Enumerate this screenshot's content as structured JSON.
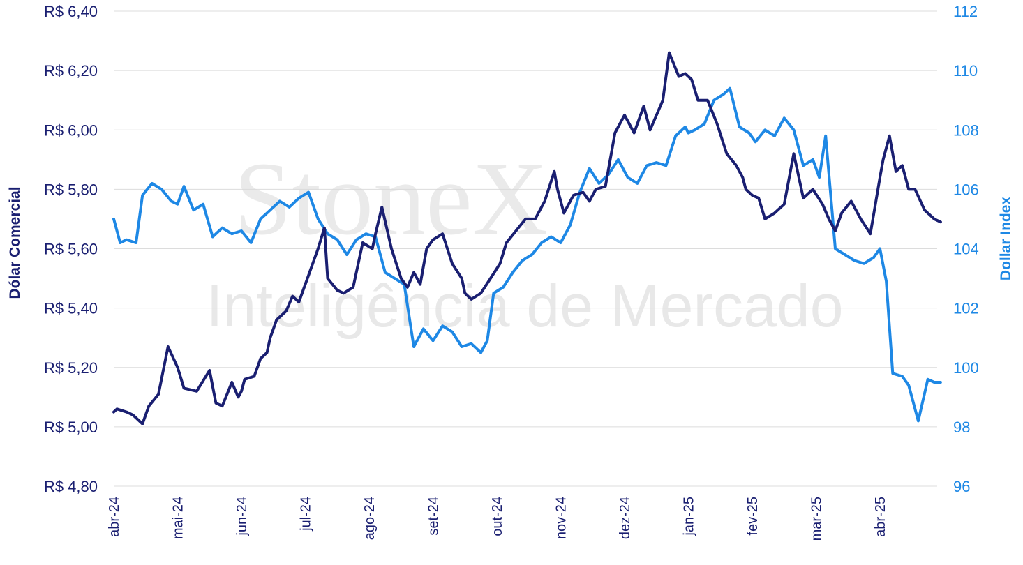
{
  "watermark": {
    "brand": "StoneX",
    "subtitle": "Inteligência de Mercado"
  },
  "chart_data": {
    "type": "line",
    "y_left": {
      "label": "Dólar Comercial",
      "range": [
        4.8,
        6.4
      ],
      "ticks": [
        "R$ 6,40",
        "R$ 6,20",
        "R$ 6,00",
        "R$ 5,80",
        "R$ 5,60",
        "R$ 5,40",
        "R$ 5,20",
        "R$ 5,00",
        "R$ 4,80"
      ]
    },
    "y_right": {
      "label": "Dollar Index",
      "range": [
        96,
        112
      ],
      "ticks": [
        "112",
        "110",
        "108",
        "106",
        "104",
        "102",
        "100",
        "98",
        "96"
      ]
    },
    "x_ticks": [
      "abr-24",
      "mai-24",
      "jun-24",
      "jul-24",
      "ago-24",
      "set-24",
      "out-24",
      "nov-24",
      "dez-24",
      "jan-25",
      "fev-25",
      "mar-25",
      "abr-25"
    ],
    "grid": "horizontal",
    "legend": "none",
    "colors": {
      "brl": "#1a1f71",
      "dxy": "#1e88e5"
    },
    "series": [
      {
        "name": "Dólar Comercial",
        "axis": "left",
        "x": [
          0,
          0.05,
          0.2,
          0.3,
          0.45,
          0.55,
          0.7,
          0.85,
          1.0,
          1.1,
          1.3,
          1.5,
          1.6,
          1.7,
          1.85,
          1.95,
          2.0,
          2.05,
          2.2,
          2.3,
          2.4,
          2.45,
          2.5,
          2.55,
          2.7,
          2.8,
          2.9,
          3.05,
          3.2,
          3.3,
          3.35,
          3.5,
          3.6,
          3.75,
          3.9,
          4.05,
          4.1,
          4.2,
          4.35,
          4.5,
          4.6,
          4.7,
          4.8,
          4.9,
          5.0,
          5.15,
          5.3,
          5.45,
          5.5,
          5.6,
          5.75,
          5.9,
          6.05,
          6.15,
          6.3,
          6.45,
          6.5,
          6.6,
          6.75,
          6.9,
          6.95,
          7.05,
          7.2,
          7.35,
          7.45,
          7.55,
          7.7,
          7.85,
          8.0,
          8.15,
          8.3,
          8.4,
          8.5,
          8.6,
          8.7,
          8.85,
          8.95,
          9.0,
          9.05,
          9.15,
          9.3,
          9.45,
          9.6,
          9.75,
          9.85,
          9.9,
          10.0,
          10.1,
          10.2,
          10.35,
          10.5,
          10.65,
          10.8,
          10.95,
          11.1,
          11.2,
          11.3,
          11.4,
          11.55,
          11.7,
          11.85,
          12.0,
          12.05,
          12.15,
          12.25,
          12.35,
          12.45,
          12.55,
          12.7,
          12.85,
          12.95
        ],
        "values": [
          5.05,
          5.06,
          5.05,
          5.04,
          5.01,
          5.07,
          5.11,
          5.27,
          5.2,
          5.13,
          5.12,
          5.19,
          5.08,
          5.07,
          5.15,
          5.1,
          5.12,
          5.16,
          5.17,
          5.23,
          5.25,
          5.3,
          5.33,
          5.36,
          5.39,
          5.44,
          5.42,
          5.51,
          5.6,
          5.67,
          5.5,
          5.46,
          5.45,
          5.47,
          5.62,
          5.6,
          5.65,
          5.74,
          5.6,
          5.5,
          5.47,
          5.52,
          5.48,
          5.6,
          5.63,
          5.65,
          5.55,
          5.5,
          5.45,
          5.43,
          5.45,
          5.5,
          5.55,
          5.62,
          5.66,
          5.7,
          5.7,
          5.7,
          5.76,
          5.86,
          5.8,
          5.72,
          5.78,
          5.79,
          5.76,
          5.8,
          5.81,
          5.99,
          6.05,
          5.99,
          6.08,
          6.0,
          6.05,
          6.1,
          6.26,
          6.18,
          6.19,
          6.18,
          6.17,
          6.1,
          6.1,
          6.02,
          5.92,
          5.88,
          5.84,
          5.8,
          5.78,
          5.77,
          5.7,
          5.72,
          5.75,
          5.92,
          5.77,
          5.8,
          5.75,
          5.7,
          5.66,
          5.72,
          5.76,
          5.7,
          5.65,
          5.84,
          5.9,
          5.98,
          5.86,
          5.88,
          5.8,
          5.8,
          5.73,
          5.7,
          5.69
        ]
      },
      {
        "name": "Dollar Index",
        "axis": "right",
        "x": [
          0,
          0.1,
          0.2,
          0.35,
          0.45,
          0.6,
          0.75,
          0.9,
          1.0,
          1.1,
          1.25,
          1.4,
          1.55,
          1.7,
          1.85,
          2.0,
          2.15,
          2.3,
          2.45,
          2.6,
          2.75,
          2.9,
          3.05,
          3.2,
          3.35,
          3.5,
          3.65,
          3.8,
          3.95,
          4.1,
          4.25,
          4.4,
          4.55,
          4.7,
          4.85,
          5.0,
          5.15,
          5.3,
          5.45,
          5.6,
          5.75,
          5.85,
          5.95,
          6.1,
          6.25,
          6.4,
          6.55,
          6.7,
          6.85,
          7.0,
          7.15,
          7.3,
          7.45,
          7.6,
          7.75,
          7.9,
          8.05,
          8.2,
          8.35,
          8.5,
          8.65,
          8.8,
          8.95,
          9.0,
          9.1,
          9.25,
          9.4,
          9.55,
          9.65,
          9.8,
          9.95,
          10.05,
          10.2,
          10.35,
          10.5,
          10.65,
          10.8,
          10.95,
          11.05,
          11.15,
          11.3,
          11.45,
          11.6,
          11.75,
          11.9,
          12.0,
          12.1,
          12.2,
          12.35,
          12.45,
          12.6,
          12.75,
          12.85,
          12.95
        ],
        "values": [
          105.0,
          104.2,
          104.3,
          104.2,
          105.8,
          106.2,
          106.0,
          105.6,
          105.5,
          106.1,
          105.3,
          105.5,
          104.4,
          104.7,
          104.5,
          104.6,
          104.2,
          105.0,
          105.3,
          105.6,
          105.4,
          105.7,
          105.9,
          105.0,
          104.5,
          104.3,
          103.8,
          104.3,
          104.5,
          104.4,
          103.2,
          103.0,
          102.8,
          100.7,
          101.3,
          100.9,
          101.4,
          101.2,
          100.7,
          100.8,
          100.5,
          100.9,
          102.5,
          102.7,
          103.2,
          103.6,
          103.8,
          104.2,
          104.4,
          104.2,
          104.8,
          105.9,
          106.7,
          106.2,
          106.5,
          107.0,
          106.4,
          106.2,
          106.8,
          106.9,
          106.8,
          107.8,
          108.1,
          107.9,
          108.0,
          108.2,
          109.0,
          109.2,
          109.4,
          108.1,
          107.9,
          107.6,
          108.0,
          107.8,
          108.4,
          108.0,
          106.8,
          107.0,
          106.4,
          107.8,
          104.0,
          103.8,
          103.6,
          103.5,
          103.7,
          104.0,
          102.9,
          99.8,
          99.7,
          99.4,
          98.2,
          99.6,
          99.5,
          99.5
        ]
      }
    ]
  }
}
